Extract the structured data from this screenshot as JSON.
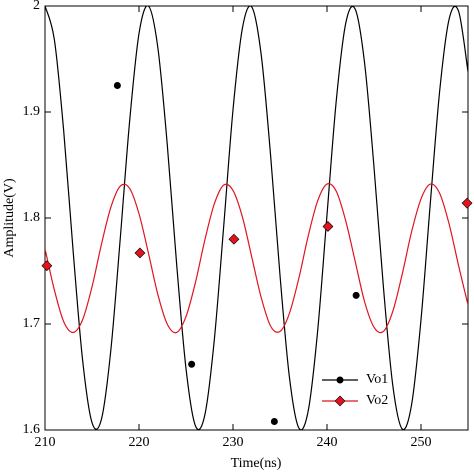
{
  "chart_data": {
    "type": "line",
    "x_label": "Time(ns)",
    "y_label": "Amplitude(V)",
    "xlim": [
      210,
      255
    ],
    "ylim": [
      1.6,
      2
    ],
    "xticks": [
      210,
      220,
      230,
      240,
      250
    ],
    "yticks": [
      1.6,
      1.7,
      1.8,
      1.9,
      2
    ],
    "legend": "bottom-right",
    "grid": false,
    "x": [
      210,
      211,
      212,
      213,
      214,
      215,
      216,
      217,
      218,
      219,
      220,
      221,
      222,
      223,
      224,
      225,
      226,
      227,
      228,
      229,
      230,
      231,
      232,
      233,
      234,
      235,
      236,
      237,
      238,
      239,
      240,
      241,
      242,
      243,
      244,
      245,
      246,
      247,
      248,
      249,
      250,
      251,
      252,
      253,
      254,
      255
    ],
    "series": [
      {
        "name": "Vo1",
        "color": "#000000",
        "marker": "circle",
        "values": [
          2.0,
          1.968,
          1.881,
          1.768,
          1.666,
          1.607,
          1.61,
          1.675,
          1.78,
          1.891,
          1.974,
          2.0,
          1.961,
          1.87,
          1.757,
          1.658,
          1.604,
          1.614,
          1.684,
          1.791,
          1.902,
          1.979,
          1.999,
          1.954,
          1.859,
          1.746,
          1.65,
          1.602,
          1.618,
          1.693,
          1.803,
          1.912,
          1.984,
          1.997,
          1.946,
          1.848,
          1.735,
          1.642,
          1.601,
          1.624,
          1.704,
          1.815,
          1.921,
          1.988,
          1.995,
          1.938
        ],
        "marker_x": [
          217.7,
          225.6,
          234.4,
          243.1
        ],
        "marker_values": [
          1.925,
          1.662,
          1.608,
          1.727
        ]
      },
      {
        "name": "Vo2",
        "color": "#e0141e",
        "marker": "diamond",
        "values": [
          1.771,
          1.732,
          1.702,
          1.692,
          1.704,
          1.735,
          1.775,
          1.81,
          1.83,
          1.828,
          1.804,
          1.767,
          1.728,
          1.7,
          1.692,
          1.707,
          1.739,
          1.779,
          1.813,
          1.831,
          1.826,
          1.801,
          1.763,
          1.725,
          1.698,
          1.693,
          1.71,
          1.743,
          1.783,
          1.816,
          1.832,
          1.825,
          1.797,
          1.759,
          1.721,
          1.697,
          1.693,
          1.712,
          1.747,
          1.787,
          1.818,
          1.832,
          1.823,
          1.794,
          1.755,
          1.718
        ],
        "marker_x": [
          210.2,
          220.1,
          230.1,
          240.1,
          254.9
        ],
        "marker_values": [
          1.755,
          1.767,
          1.78,
          1.792,
          1.814
        ]
      }
    ]
  }
}
